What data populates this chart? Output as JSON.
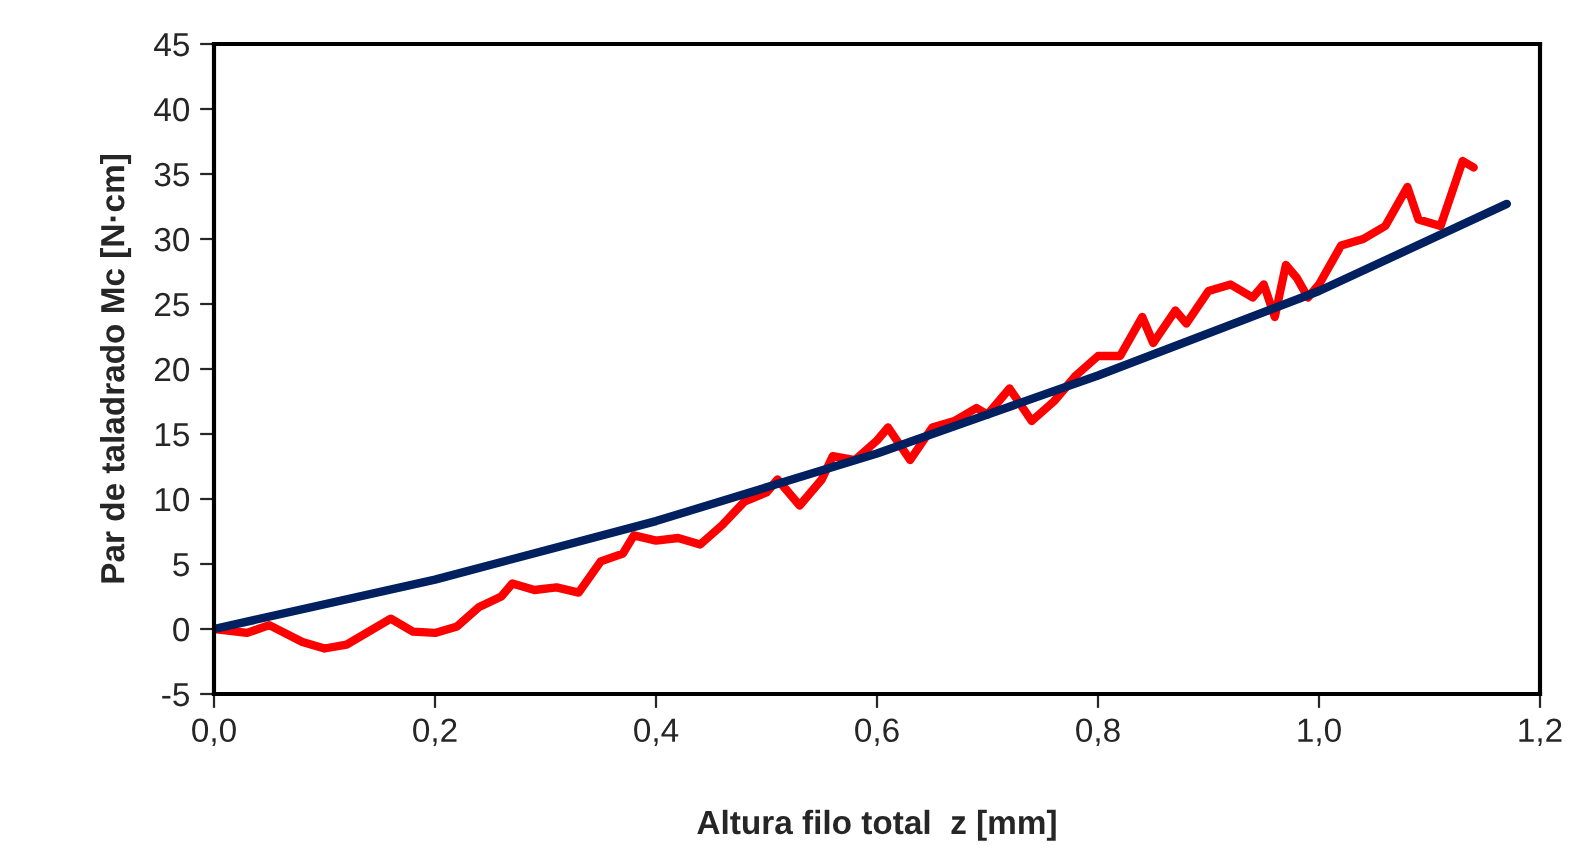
{
  "chart_data": {
    "type": "line",
    "xlabel": "Altura filo total  z [mm]",
    "ylabel": "Par de taladrado Mc [N·cm]",
    "xlim": [
      0,
      1.2
    ],
    "ylim": [
      -5,
      45
    ],
    "xticks": [
      {
        "value": 0,
        "label": "0,0"
      },
      {
        "value": 0.2,
        "label": "0,2"
      },
      {
        "value": 0.4,
        "label": "0,4"
      },
      {
        "value": 0.6,
        "label": "0,6"
      },
      {
        "value": 0.8,
        "label": "0,8"
      },
      {
        "value": 1.0,
        "label": "1,0"
      },
      {
        "value": 1.2,
        "label": "1,2"
      }
    ],
    "yticks": [
      -5,
      0,
      5,
      10,
      15,
      20,
      25,
      30,
      35,
      40,
      45
    ],
    "grid": false,
    "marker": "none",
    "line_style": "solid",
    "series": [
      {
        "color": "#ff0000",
        "x": [
          0.0,
          0.03,
          0.05,
          0.08,
          0.1,
          0.12,
          0.14,
          0.16,
          0.18,
          0.2,
          0.22,
          0.24,
          0.26,
          0.27,
          0.29,
          0.31,
          0.33,
          0.35,
          0.37,
          0.38,
          0.4,
          0.42,
          0.44,
          0.46,
          0.48,
          0.5,
          0.51,
          0.53,
          0.55,
          0.56,
          0.58,
          0.6,
          0.61,
          0.63,
          0.65,
          0.67,
          0.69,
          0.7,
          0.72,
          0.74,
          0.76,
          0.78,
          0.8,
          0.82,
          0.84,
          0.85,
          0.87,
          0.88,
          0.9,
          0.92,
          0.94,
          0.95,
          0.96,
          0.97,
          0.98,
          0.99,
          1.0,
          1.02,
          1.04,
          1.06,
          1.08,
          1.09,
          1.11,
          1.13,
          1.14
        ],
        "values": [
          0,
          -0.3,
          0.3,
          -1.0,
          -1.5,
          -1.2,
          -0.2,
          0.8,
          -0.2,
          -0.3,
          0.2,
          1.7,
          2.5,
          3.5,
          3.0,
          3.2,
          2.8,
          5.2,
          5.8,
          7.2,
          6.8,
          7.0,
          6.5,
          8.0,
          9.8,
          10.5,
          11.5,
          9.5,
          11.5,
          13.3,
          13.0,
          14.5,
          15.5,
          13.0,
          15.5,
          16.0,
          17.0,
          16.5,
          18.5,
          16.0,
          17.5,
          19.5,
          21.0,
          21.0,
          24.0,
          22.0,
          24.5,
          23.5,
          26.0,
          26.5,
          25.5,
          26.5,
          24.0,
          28.0,
          27.0,
          25.5,
          26.5,
          29.5,
          30.0,
          31.0,
          34.0,
          31.5,
          31.0,
          36.0,
          35.5
        ]
      },
      {
        "color": "#002060",
        "x": [
          0.0,
          0.2,
          0.4,
          0.6,
          0.8,
          1.0,
          1.17
        ],
        "values": [
          0,
          3.8,
          8.3,
          13.5,
          19.5,
          26.0,
          32.7
        ]
      }
    ]
  }
}
